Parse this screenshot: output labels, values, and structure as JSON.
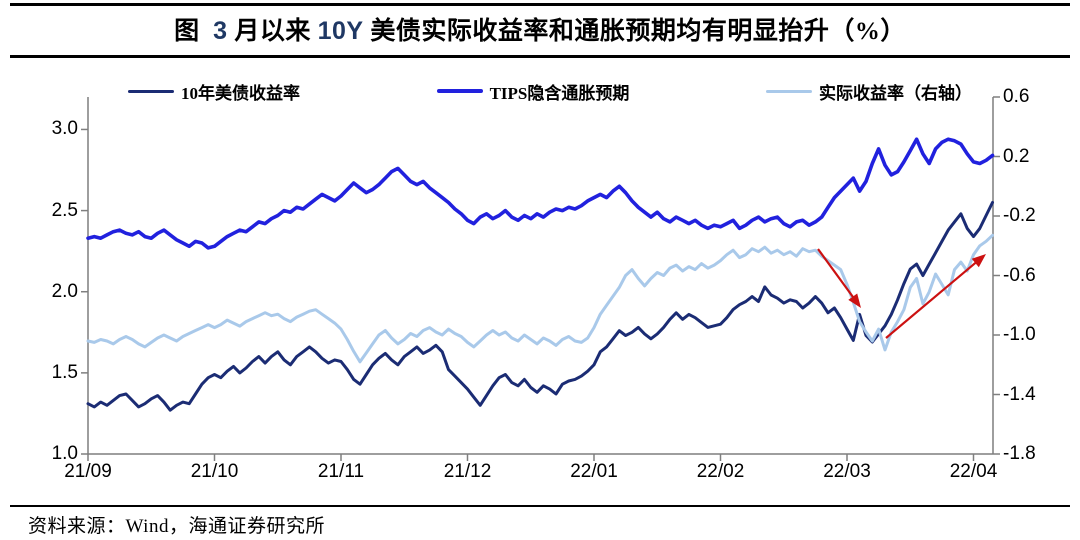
{
  "title": {
    "segments": [
      {
        "text": "图  ",
        "color": "#000000"
      },
      {
        "text": "3",
        "color": "#1F3864"
      },
      {
        "text": " 月以来 ",
        "color": "#000000"
      },
      {
        "text": "10Y",
        "color": "#1F3864"
      },
      {
        "text": " 美债实际收益率和通胀预期均有明显抬升（%）",
        "color": "#000000"
      }
    ]
  },
  "footer": {
    "source_text": "资料来源：Wind，海通证券研究所"
  },
  "chart_data": {
    "type": "line",
    "title": "图 3月以来10Y美债实际收益率和通胀预期均有明显抬升（%）",
    "legend_position": "top",
    "grid": false,
    "x_axis": {
      "tick_labels": [
        "21/09",
        "21/10",
        "21/11",
        "21/12",
        "22/01",
        "22/02",
        "22/03",
        "22/04"
      ],
      "points_per_month": 20
    },
    "left_axis": {
      "min": 1.0,
      "max": 3.2,
      "tick_values": [
        3.0,
        2.5,
        2.0,
        1.5,
        1.0
      ],
      "tick_labels": [
        "3.0",
        "2.5",
        "2.0",
        "1.5",
        "1.0"
      ]
    },
    "right_axis": {
      "min": -1.8,
      "max": 0.6,
      "tick_values": [
        0.6,
        0.2,
        -0.2,
        -0.6,
        -1.0,
        -1.4,
        -1.8
      ],
      "tick_labels": [
        "0.6",
        "0.2",
        "-0.2",
        "-0.6",
        "-1.0",
        "-1.4",
        "-1.8"
      ]
    },
    "axis_color": "#7f7f7f",
    "series": [
      {
        "name": "10年美债收益率",
        "axis": "left",
        "color": "#1B2C74",
        "width": 3,
        "values": [
          1.31,
          1.29,
          1.32,
          1.3,
          1.33,
          1.36,
          1.37,
          1.33,
          1.29,
          1.31,
          1.34,
          1.36,
          1.32,
          1.27,
          1.3,
          1.32,
          1.31,
          1.37,
          1.43,
          1.47,
          1.49,
          1.47,
          1.51,
          1.54,
          1.5,
          1.53,
          1.57,
          1.6,
          1.56,
          1.6,
          1.63,
          1.58,
          1.55,
          1.6,
          1.63,
          1.66,
          1.63,
          1.59,
          1.56,
          1.58,
          1.57,
          1.52,
          1.46,
          1.43,
          1.49,
          1.55,
          1.59,
          1.62,
          1.58,
          1.55,
          1.6,
          1.63,
          1.66,
          1.62,
          1.64,
          1.67,
          1.63,
          1.52,
          1.48,
          1.44,
          1.4,
          1.35,
          1.3,
          1.36,
          1.42,
          1.47,
          1.49,
          1.44,
          1.42,
          1.46,
          1.41,
          1.38,
          1.42,
          1.4,
          1.37,
          1.43,
          1.45,
          1.46,
          1.48,
          1.51,
          1.55,
          1.63,
          1.66,
          1.71,
          1.76,
          1.73,
          1.75,
          1.78,
          1.74,
          1.71,
          1.74,
          1.78,
          1.83,
          1.87,
          1.83,
          1.86,
          1.84,
          1.81,
          1.78,
          1.79,
          1.8,
          1.84,
          1.89,
          1.92,
          1.94,
          1.97,
          1.94,
          2.03,
          1.98,
          1.96,
          1.93,
          1.95,
          1.94,
          1.9,
          1.93,
          1.97,
          1.93,
          1.87,
          1.9,
          1.84,
          1.77,
          1.7,
          1.86,
          1.73,
          1.69,
          1.74,
          1.79,
          1.86,
          1.95,
          2.05,
          2.14,
          2.17,
          2.1,
          2.17,
          2.24,
          2.31,
          2.38,
          2.43,
          2.48,
          2.39,
          2.34,
          2.39,
          2.47,
          2.55
        ]
      },
      {
        "name": "TIPS隐含通胀预期",
        "axis": "left",
        "color": "#2121DE",
        "width": 3.6,
        "values": [
          2.33,
          2.34,
          2.33,
          2.35,
          2.37,
          2.38,
          2.36,
          2.35,
          2.37,
          2.34,
          2.33,
          2.36,
          2.38,
          2.35,
          2.32,
          2.3,
          2.28,
          2.31,
          2.3,
          2.27,
          2.28,
          2.31,
          2.34,
          2.36,
          2.38,
          2.37,
          2.4,
          2.43,
          2.42,
          2.45,
          2.47,
          2.5,
          2.49,
          2.52,
          2.51,
          2.54,
          2.57,
          2.6,
          2.58,
          2.56,
          2.59,
          2.63,
          2.67,
          2.64,
          2.61,
          2.63,
          2.66,
          2.7,
          2.74,
          2.76,
          2.72,
          2.68,
          2.66,
          2.68,
          2.64,
          2.61,
          2.58,
          2.55,
          2.51,
          2.48,
          2.44,
          2.42,
          2.46,
          2.48,
          2.45,
          2.47,
          2.5,
          2.46,
          2.44,
          2.47,
          2.45,
          2.48,
          2.46,
          2.49,
          2.51,
          2.5,
          2.52,
          2.51,
          2.53,
          2.56,
          2.58,
          2.6,
          2.58,
          2.62,
          2.65,
          2.61,
          2.56,
          2.52,
          2.49,
          2.46,
          2.49,
          2.45,
          2.43,
          2.46,
          2.44,
          2.42,
          2.44,
          2.41,
          2.39,
          2.41,
          2.4,
          2.42,
          2.44,
          2.39,
          2.41,
          2.44,
          2.46,
          2.43,
          2.45,
          2.46,
          2.42,
          2.4,
          2.43,
          2.44,
          2.41,
          2.43,
          2.46,
          2.52,
          2.58,
          2.62,
          2.66,
          2.7,
          2.62,
          2.68,
          2.79,
          2.88,
          2.78,
          2.72,
          2.74,
          2.8,
          2.87,
          2.94,
          2.85,
          2.79,
          2.88,
          2.92,
          2.94,
          2.93,
          2.91,
          2.85,
          2.8,
          2.79,
          2.81,
          2.84
        ]
      },
      {
        "name": "实际收益率（右轴）",
        "axis": "right",
        "color": "#A9C9EA",
        "width": 3,
        "values": [
          -1.04,
          -1.05,
          -1.03,
          -1.04,
          -1.06,
          -1.03,
          -1.01,
          -1.03,
          -1.06,
          -1.08,
          -1.05,
          -1.02,
          -1.0,
          -1.02,
          -1.04,
          -1.01,
          -0.99,
          -0.97,
          -0.95,
          -0.93,
          -0.95,
          -0.93,
          -0.9,
          -0.92,
          -0.94,
          -0.91,
          -0.89,
          -0.87,
          -0.85,
          -0.87,
          -0.86,
          -0.89,
          -0.91,
          -0.88,
          -0.86,
          -0.84,
          -0.83,
          -0.86,
          -0.89,
          -0.92,
          -0.96,
          -1.03,
          -1.11,
          -1.18,
          -1.12,
          -1.06,
          -1.0,
          -0.97,
          -1.02,
          -1.06,
          -1.03,
          -0.99,
          -1.01,
          -0.97,
          -0.95,
          -0.98,
          -1.0,
          -0.96,
          -0.99,
          -1.01,
          -1.05,
          -1.08,
          -1.04,
          -1.0,
          -0.97,
          -1.0,
          -0.98,
          -1.02,
          -1.04,
          -1.0,
          -1.03,
          -1.06,
          -1.02,
          -1.04,
          -1.07,
          -1.03,
          -1.01,
          -1.04,
          -1.05,
          -1.02,
          -0.95,
          -0.86,
          -0.8,
          -0.74,
          -0.68,
          -0.6,
          -0.56,
          -0.62,
          -0.67,
          -0.62,
          -0.58,
          -0.6,
          -0.55,
          -0.53,
          -0.57,
          -0.54,
          -0.56,
          -0.52,
          -0.55,
          -0.53,
          -0.5,
          -0.46,
          -0.43,
          -0.48,
          -0.46,
          -0.42,
          -0.44,
          -0.41,
          -0.45,
          -0.43,
          -0.46,
          -0.44,
          -0.47,
          -0.42,
          -0.44,
          -0.43,
          -0.47,
          -0.5,
          -0.53,
          -0.56,
          -0.66,
          -0.78,
          -0.91,
          -0.98,
          -1.04,
          -0.96,
          -1.1,
          -0.98,
          -0.91,
          -0.83,
          -0.68,
          -0.62,
          -0.79,
          -0.71,
          -0.59,
          -0.66,
          -0.73,
          -0.56,
          -0.51,
          -0.57,
          -0.46,
          -0.4,
          -0.37,
          -0.33
        ]
      }
    ],
    "annotations": [
      {
        "type": "arrow",
        "direction": "down-right",
        "color": "#CC1111",
        "from": [
          818,
          249
        ],
        "to": [
          861,
          308
        ]
      },
      {
        "type": "arrow",
        "direction": "up-right",
        "color": "#CC1111",
        "from": [
          886,
          338
        ],
        "to": [
          986,
          254
        ]
      }
    ]
  }
}
